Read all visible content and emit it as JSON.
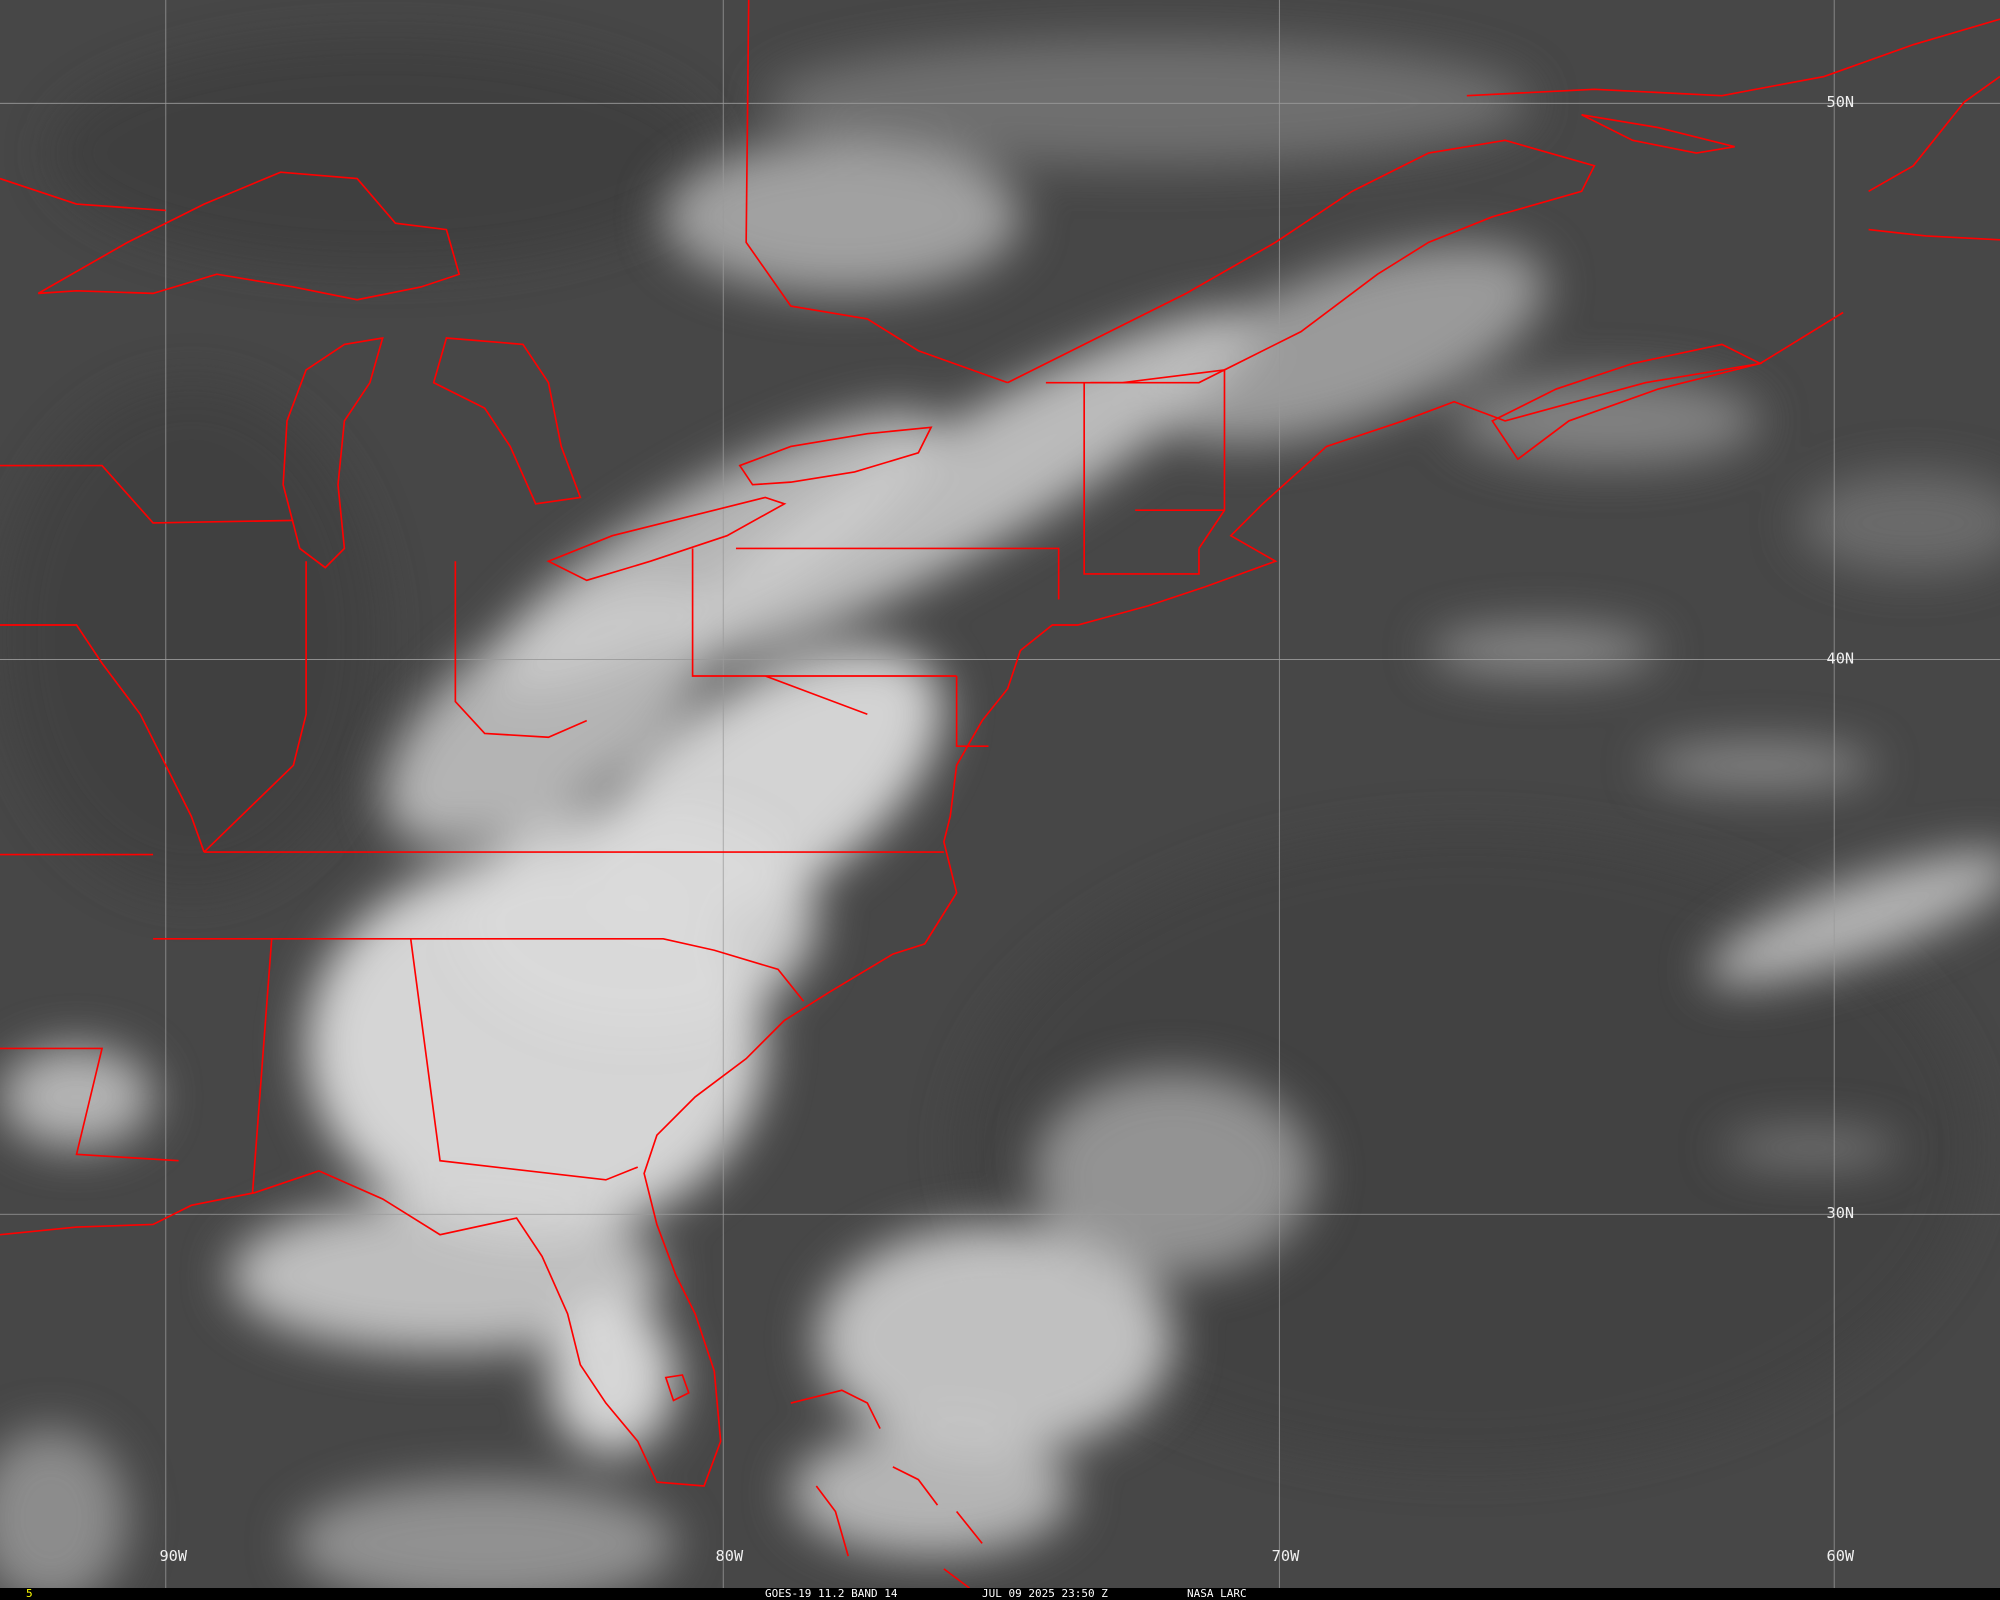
{
  "map": {
    "background_color": "#4a4a4a",
    "border_color": "#ff0000",
    "grid_color": "#9a9a9a",
    "longitude_labels": [
      "90W",
      "80W",
      "70W",
      "60W"
    ],
    "latitude_labels": [
      "50N",
      "40N",
      "30N"
    ]
  },
  "footer": {
    "frame_number": "5",
    "frame_color": "#ffff00",
    "product": "GOES-19 11.2 BAND 14",
    "timestamp": "JUL 09 2025 23:50 Z",
    "source": "NASA LARC"
  }
}
